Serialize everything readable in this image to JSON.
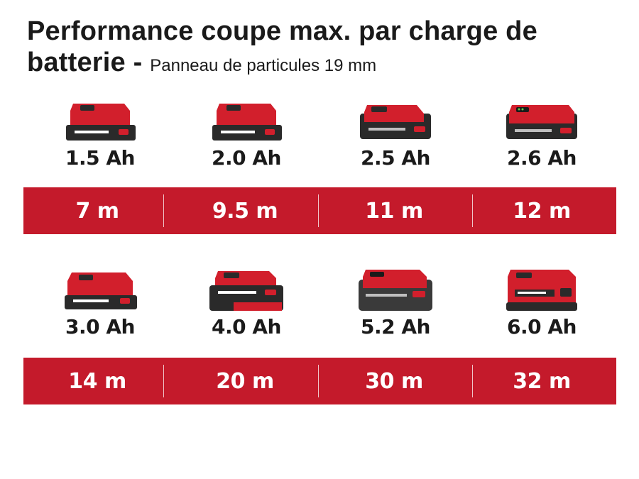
{
  "header": {
    "title": "Performance coupe max. par charge de batterie -",
    "subtitle": "Panneau de particules 19 mm"
  },
  "rows": [
    {
      "batteries": [
        {
          "capacity": "1.5 Ah",
          "runtime": "7 m",
          "icon": "battery-compact-icon"
        },
        {
          "capacity": "2.0 Ah",
          "runtime": "9.5 m",
          "icon": "battery-compact-icon"
        },
        {
          "capacity": "2.5 Ah",
          "runtime": "11 m",
          "icon": "battery-plus-icon"
        },
        {
          "capacity": "2.6 Ah",
          "runtime": "12 m",
          "icon": "battery-plus-icon"
        }
      ]
    },
    {
      "batteries": [
        {
          "capacity": "3.0 Ah",
          "runtime": "14 m",
          "icon": "battery-compact-icon"
        },
        {
          "capacity": "4.0 Ah",
          "runtime": "20 m",
          "icon": "battery-large-icon"
        },
        {
          "capacity": "5.2 Ah",
          "runtime": "30 m",
          "icon": "battery-large-icon"
        },
        {
          "capacity": "6.0 Ah",
          "runtime": "32 m",
          "icon": "battery-large-icon"
        }
      ]
    }
  ],
  "colors": {
    "band": "#c41a2b",
    "battery_red": "#d21f2c",
    "battery_dark": "#2a2a2a",
    "text": "#1a1a1a"
  }
}
